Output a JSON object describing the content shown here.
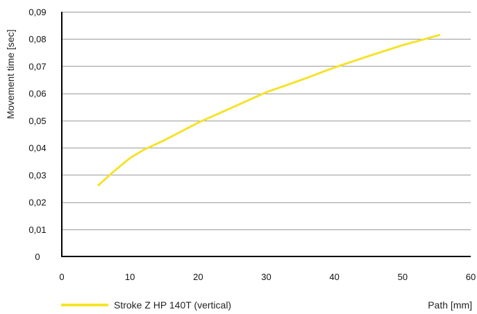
{
  "chart_data": {
    "type": "line",
    "title": "",
    "xlabel": "Path [mm]",
    "ylabel": "Movement time [sec]",
    "xlim": [
      0,
      60
    ],
    "ylim": [
      0,
      0.09
    ],
    "x_ticks": [
      0,
      10,
      20,
      30,
      40,
      50,
      60
    ],
    "x_tick_labels": [
      "0",
      "10",
      "20",
      "30",
      "40",
      "50",
      "60"
    ],
    "y_ticks": [
      0,
      0.01,
      0.02,
      0.03,
      0.04,
      0.05,
      0.06,
      0.07,
      0.08,
      0.09
    ],
    "y_tick_labels": [
      "0",
      "0,01",
      "0,02",
      "0,03",
      "0,04",
      "0,05",
      "0,06",
      "0,07",
      "0,08",
      "0,09"
    ],
    "grid": "horizontal",
    "legend_position": "bottom-left",
    "series": [
      {
        "name": "Stroke Z HP 140T (vertical)",
        "color": "#f5e32a",
        "x": [
          5.3,
          7.5,
          10,
          12,
          15,
          20,
          25,
          30,
          35,
          40,
          45,
          50,
          55.5
        ],
        "y": [
          0.026,
          0.031,
          0.0362,
          0.0392,
          0.0427,
          0.0492,
          0.0548,
          0.0604,
          0.0648,
          0.0695,
          0.0737,
          0.0777,
          0.0815
        ]
      }
    ]
  }
}
